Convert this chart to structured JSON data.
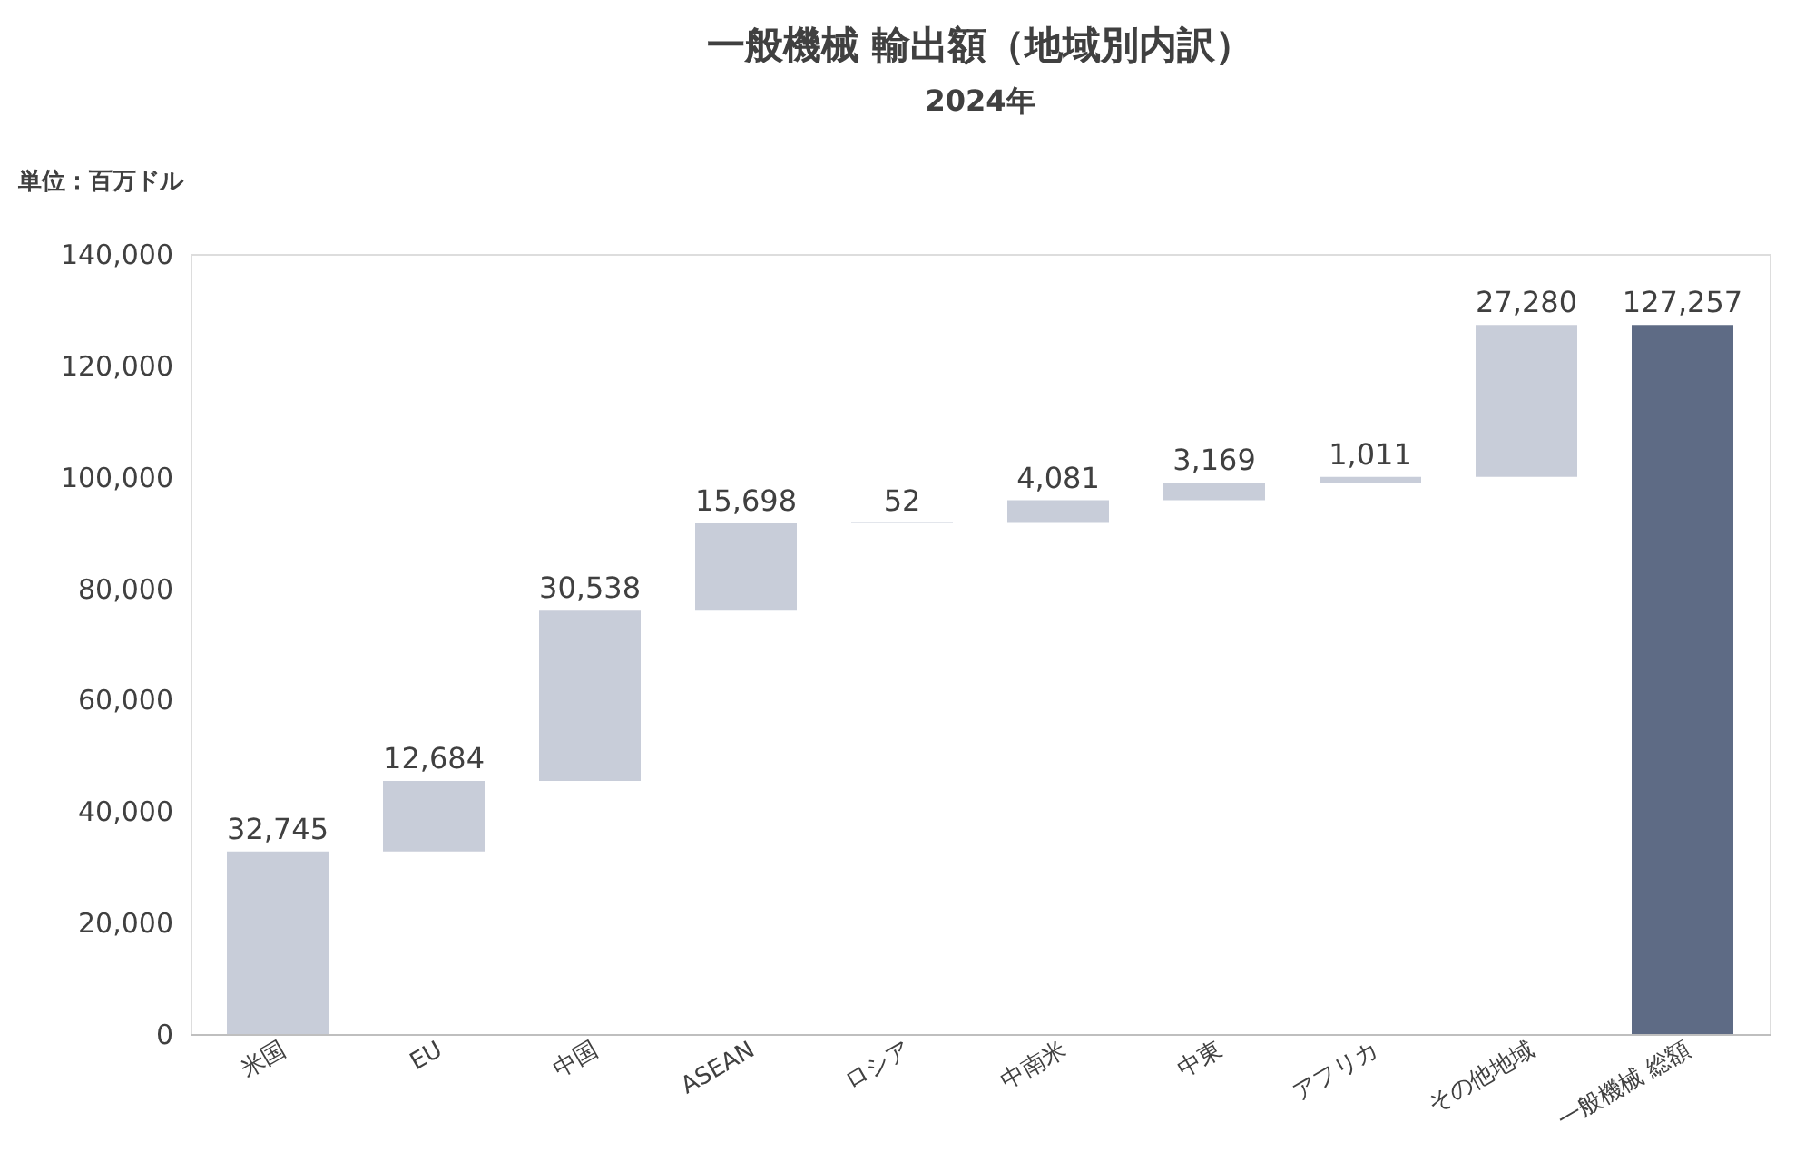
{
  "chart_data": {
    "type": "bar",
    "title": "一般機械 輸出額（地域別内訳）",
    "subtitle": "2024年",
    "annotations": [
      "単位：百万ドル"
    ],
    "categories": [
      "米国",
      "EU",
      "中国",
      "ASEAN",
      "ロシア",
      "中南米",
      "中東",
      "アフリカ",
      "その他地域",
      "一般機械 総額"
    ],
    "values": [
      32745,
      12684,
      30538,
      15698,
      52,
      4081,
      3169,
      1011,
      27280,
      127257
    ],
    "value_labels": [
      "32,745",
      "12,684",
      "30,538",
      "15,698",
      "52",
      "4,081",
      "3,169",
      "1,011",
      "27,280",
      "127,257"
    ],
    "base": [
      0,
      32745,
      45429,
      75967,
      91665,
      91717,
      95798,
      98967,
      99978,
      0
    ],
    "colors": [
      "#c8cdd9",
      "#c8cdd9",
      "#c8cdd9",
      "#c8cdd9",
      "#c8cdd9",
      "#c8cdd9",
      "#c8cdd9",
      "#c8cdd9",
      "#c8cdd9",
      "#5e6b85"
    ],
    "ylim": [
      0,
      140000
    ],
    "yticks": [
      0,
      {
        "value": 20000,
        "label": "20,000"
      },
      {
        "value": 40000,
        "label": "40,000"
      },
      {
        "value": 60000,
        "label": "60,000"
      },
      {
        "value": 80000,
        "label": "80,000"
      },
      {
        "value": 100000,
        "label": "100,000"
      },
      {
        "value": 120000,
        "label": "120,000"
      },
      {
        "value": 140000,
        "label": "140,000"
      }
    ],
    "grid": false
  }
}
